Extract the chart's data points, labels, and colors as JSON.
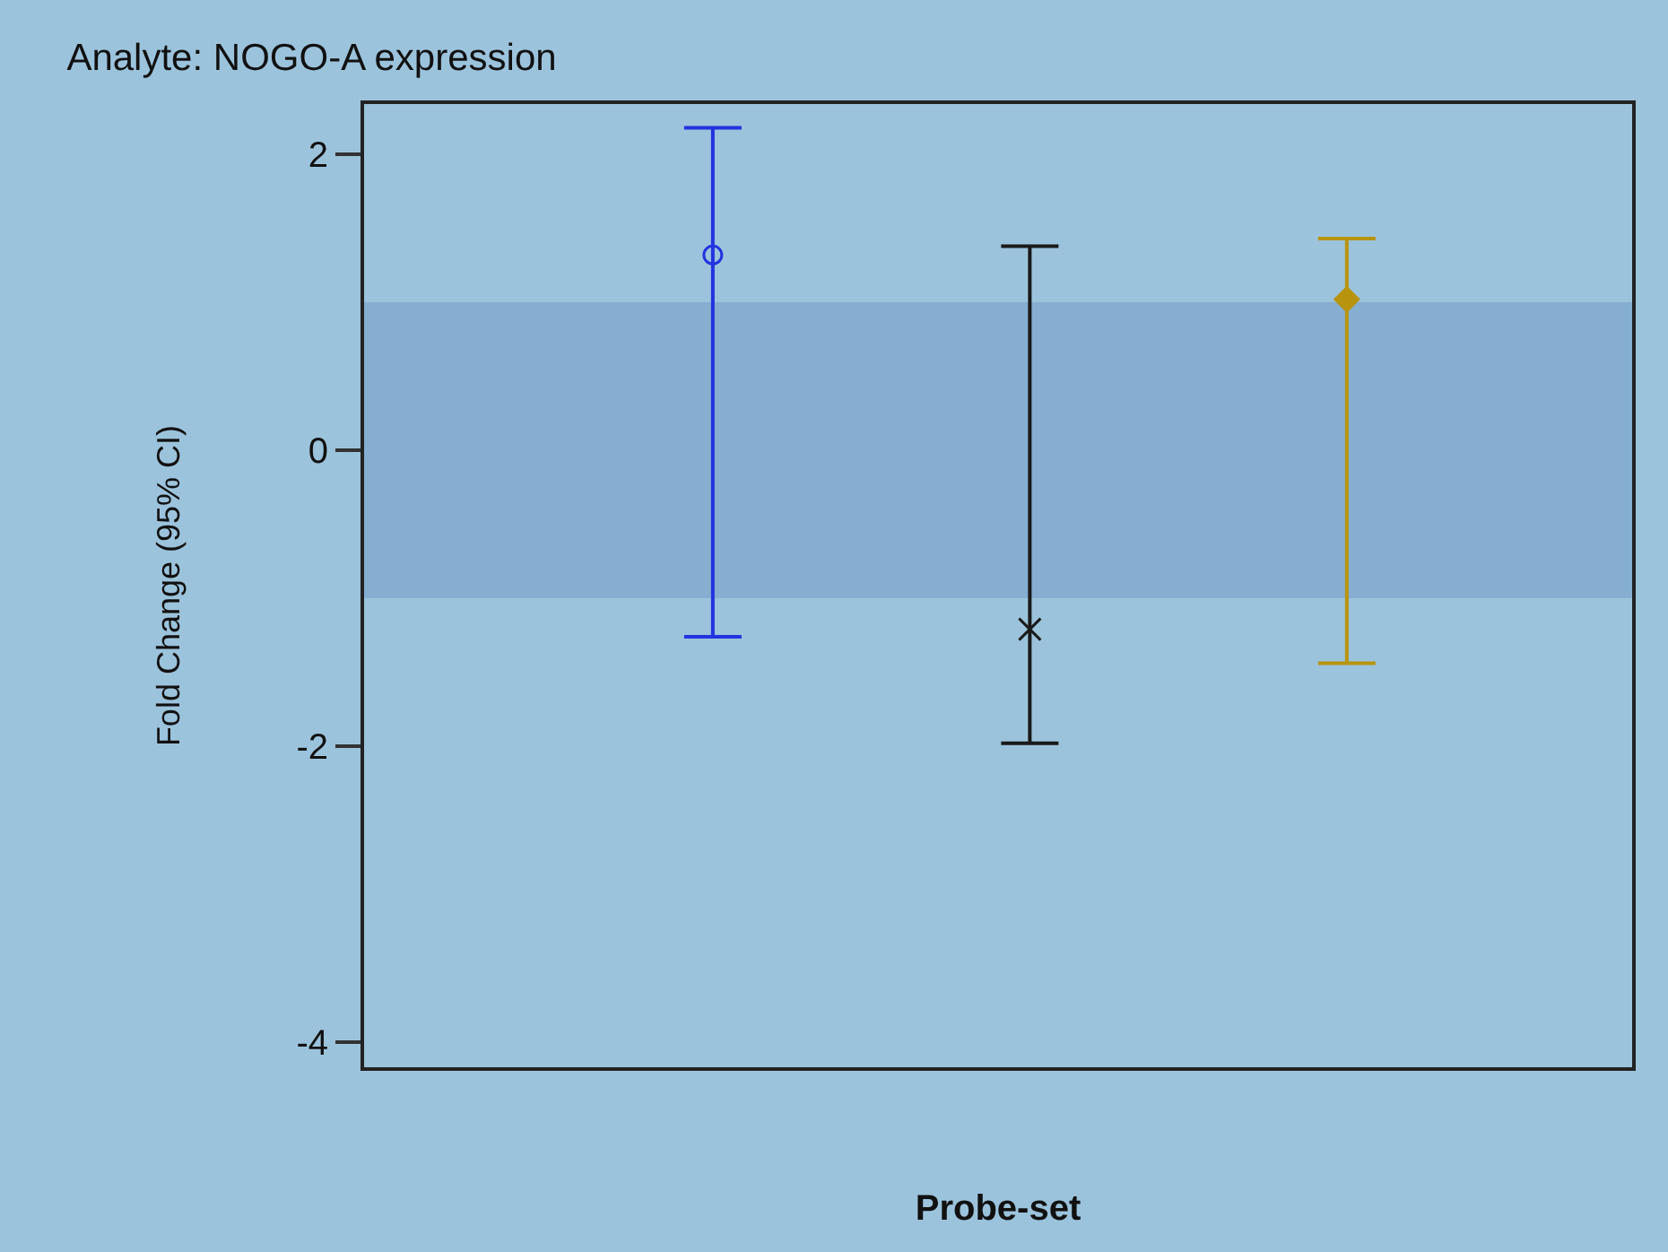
{
  "chart_data": {
    "type": "scatter",
    "title": "Analyte: NOGO-A expression",
    "xlabel": "Probe-set",
    "ylabel": "Fold Change (95% CI)",
    "categories": [
      null,
      null,
      null
    ],
    "series": [
      {
        "color": "#2233e0",
        "marker": "circle",
        "values": [
          1.32,
          null,
          null
        ],
        "errors": [
          [
            -1.26,
            2.18
          ],
          null,
          null
        ]
      },
      {
        "color": "#1a1a1a",
        "marker": "cross",
        "values": [
          null,
          -1.21,
          null
        ],
        "errors": [
          null,
          [
            -1.98,
            1.38
          ],
          null
        ]
      },
      {
        "color": "#b8940e",
        "marker": "diamond",
        "values": [
          null,
          null,
          1.02
        ],
        "errors": [
          null,
          null,
          [
            -1.44,
            1.43
          ]
        ]
      }
    ],
    "bands": [
      {
        "axis": "y",
        "from": -1,
        "to": 1,
        "color": "#85aed0"
      }
    ],
    "ylim": [
      -4.17,
      2.34
    ],
    "yticks": [
      -4,
      -2,
      0,
      2
    ],
    "tick_labels": "y",
    "grid": false
  }
}
